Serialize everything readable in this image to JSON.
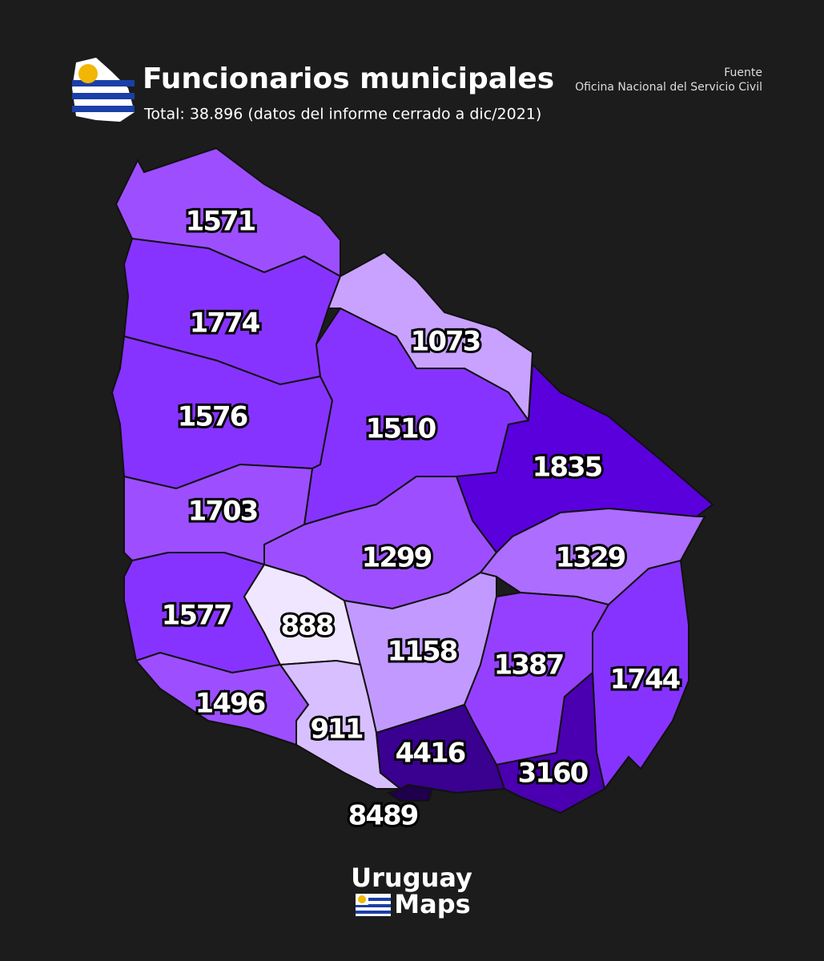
{
  "header": {
    "title": "Funcionarios municipales",
    "subtitle": "Total: 38.896 (datos del informe cerrado a dic/2021)",
    "source_label": "Fuente",
    "source": "Oficina Nacional del Servicio Civil"
  },
  "map": {
    "regions": [
      {
        "value": 1571,
        "color": "#9d4fff"
      },
      {
        "value": 1774,
        "color": "#8733ff"
      },
      {
        "value": 1073,
        "color": "#c9a2ff"
      },
      {
        "value": 1576,
        "color": "#8733ff"
      },
      {
        "value": 1510,
        "color": "#8733ff"
      },
      {
        "value": 1835,
        "color": "#5a00dd"
      },
      {
        "value": 1703,
        "color": "#9d4fff"
      },
      {
        "value": 1299,
        "color": "#9d4fff"
      },
      {
        "value": 1329,
        "color": "#ad6dff"
      },
      {
        "value": 1577,
        "color": "#8733ff"
      },
      {
        "value": 888,
        "color": "#f0e6ff"
      },
      {
        "value": 1158,
        "color": "#c29aff"
      },
      {
        "value": 1387,
        "color": "#9640ff"
      },
      {
        "value": 1744,
        "color": "#8733ff"
      },
      {
        "value": 1496,
        "color": "#9d4fff"
      },
      {
        "value": 911,
        "color": "#d8bfff"
      },
      {
        "value": 4416,
        "color": "#3a0090"
      },
      {
        "value": 3160,
        "color": "#4a00b0"
      },
      {
        "value": 8489,
        "color": "#1e004d"
      }
    ]
  },
  "footer": {
    "brand_line1": "Uruguay",
    "brand_line2": "Maps"
  }
}
